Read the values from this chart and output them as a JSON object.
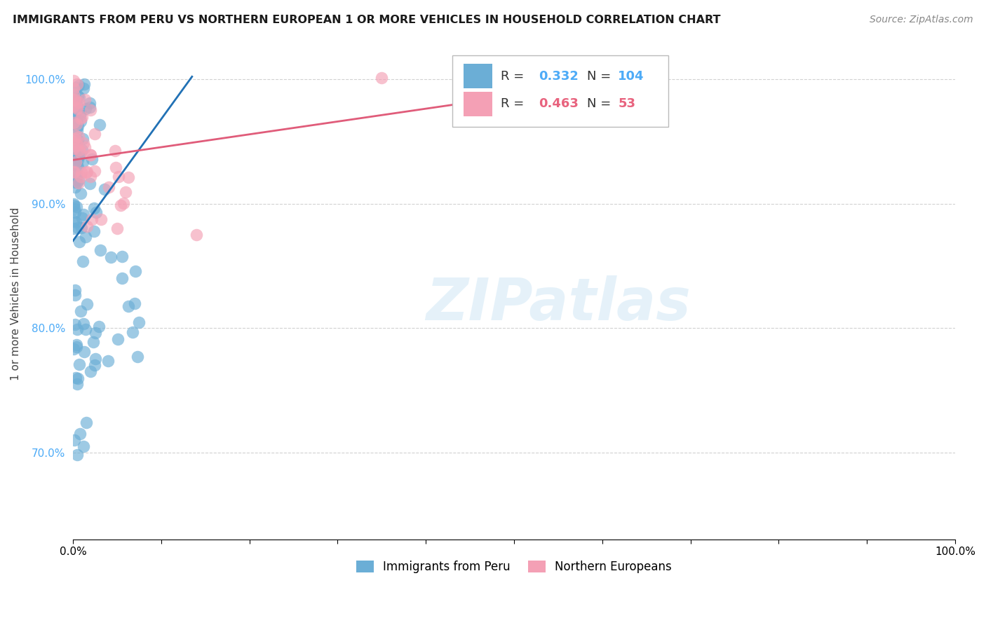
{
  "title": "IMMIGRANTS FROM PERU VS NORTHERN EUROPEAN 1 OR MORE VEHICLES IN HOUSEHOLD CORRELATION CHART",
  "source": "Source: ZipAtlas.com",
  "ylabel": "1 or more Vehicles in Household",
  "R_blue": 0.332,
  "N_blue": 104,
  "R_pink": 0.463,
  "N_pink": 53,
  "blue_color": "#6baed6",
  "pink_color": "#f4a0b5",
  "blue_line_color": "#2171b5",
  "pink_line_color": "#e05c7a",
  "text_color_blue": "#4dabf7",
  "text_color_pink": "#e8637e",
  "ytick_color": "#4dabf7",
  "watermark_text": "ZIPatlas",
  "legend_label_blue": "Immigrants from Peru",
  "legend_label_pink": "Northern Europeans",
  "background_color": "#ffffff",
  "grid_color": "#cccccc",
  "xlim": [
    0.0,
    1.0
  ],
  "ylim": [
    0.63,
    1.025
  ],
  "ytick_values": [
    0.7,
    0.8,
    0.9,
    1.0
  ],
  "ytick_labels": [
    "70.0%",
    "80.0%",
    "90.0%",
    "100.0%"
  ],
  "xtick_values": [
    0.0,
    0.1,
    0.2,
    0.3,
    0.4,
    0.5,
    0.6,
    0.7,
    0.8,
    0.9,
    1.0
  ],
  "xtick_labels": [
    "0.0%",
    "",
    "",
    "",
    "",
    "",
    "",
    "",
    "",
    "",
    "100.0%"
  ],
  "blue_line_x": [
    0.0,
    0.135
  ],
  "blue_line_y": [
    0.87,
    1.002
  ],
  "pink_line_x": [
    0.0,
    0.65
  ],
  "pink_line_y": [
    0.935,
    1.002
  ]
}
